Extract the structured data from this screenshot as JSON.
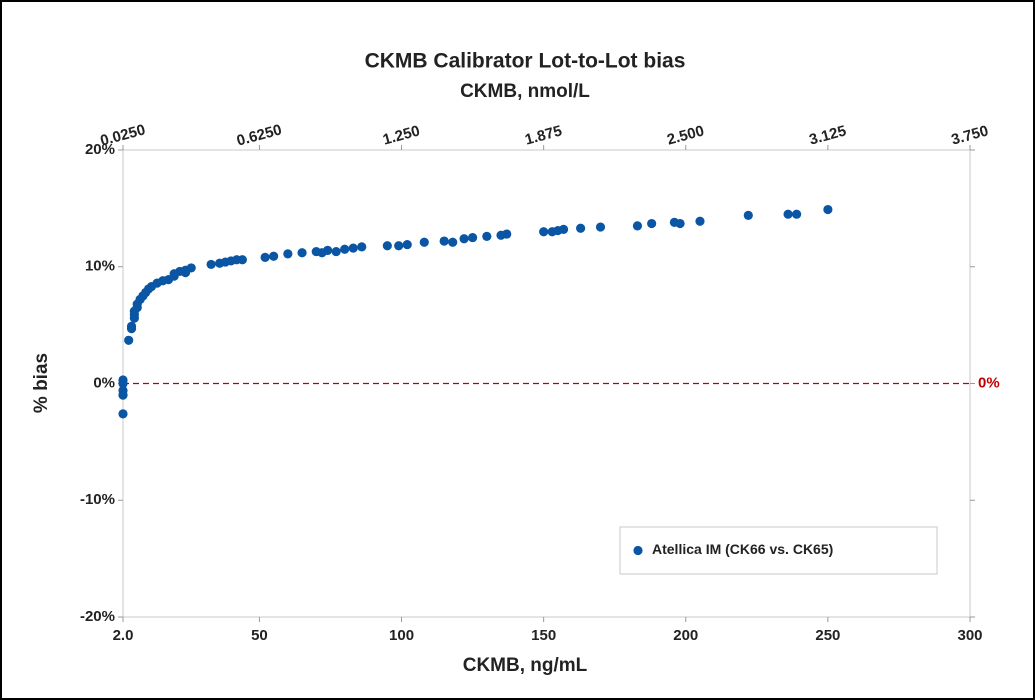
{
  "chart_data": {
    "type": "scatter",
    "title": "CKMB Calibrator Lot-to-Lot bias",
    "x2_label": "CKMB, nmol/L",
    "x_label": "CKMB, ng/mL",
    "y_label": "% bias",
    "xlim": [
      2,
      300
    ],
    "xticks": [
      {
        "value": 2,
        "label": "2.0"
      },
      50,
      100,
      150,
      200,
      250,
      300
    ],
    "x2lim": [
      0.025,
      3.75
    ],
    "x2ticks": [
      {
        "value": 0.025,
        "label": "0.0250"
      },
      {
        "value": 0.625,
        "label": "0.6250"
      },
      {
        "value": 1.25,
        "label": "1.250"
      },
      {
        "value": 1.875,
        "label": "1.875"
      },
      {
        "value": 2.5,
        "label": "2.500"
      },
      {
        "value": 3.125,
        "label": "3.125"
      },
      {
        "value": 3.75,
        "label": "3.750"
      }
    ],
    "ylim": [
      -20,
      20
    ],
    "yticks": [
      {
        "value": -20,
        "label": "-20%"
      },
      {
        "value": -10,
        "label": "-10%"
      },
      {
        "value": 0,
        "label": "0%"
      },
      {
        "value": 10,
        "label": "10%"
      },
      {
        "value": 20,
        "label": "20%"
      }
    ],
    "reference_line": {
      "value": 0,
      "label": "0%",
      "color": "#c00000"
    },
    "legend": "lower right",
    "series": [
      {
        "name": "Atellica IM (CK66 vs. CK65)",
        "color": "#0b56a4",
        "x": [
          2,
          2,
          2,
          2,
          2,
          4,
          5,
          5,
          6,
          6,
          6,
          7,
          7,
          8,
          9,
          10,
          11,
          12,
          14,
          16,
          18,
          20,
          20,
          22,
          24,
          24,
          26,
          33,
          36,
          38,
          40,
          42,
          44,
          52,
          55,
          60,
          65,
          70,
          72,
          74,
          77,
          80,
          83,
          86,
          95,
          99,
          102,
          108,
          115,
          118,
          122,
          125,
          130,
          135,
          137,
          150,
          153,
          155,
          157,
          163,
          170,
          183,
          188,
          196,
          198,
          205,
          222,
          236,
          239,
          250
        ],
        "values": [
          -2.6,
          -1.0,
          -0.6,
          0,
          0.3,
          3.7,
          4.7,
          4.9,
          5.6,
          5.9,
          6.2,
          6.5,
          6.8,
          7.2,
          7.5,
          7.8,
          8.1,
          8.3,
          8.6,
          8.8,
          8.9,
          9.2,
          9.4,
          9.6,
          9.7,
          9.5,
          9.9,
          10.2,
          10.3,
          10.4,
          10.5,
          10.6,
          10.6,
          10.8,
          10.9,
          11.1,
          11.2,
          11.3,
          11.2,
          11.4,
          11.3,
          11.5,
          11.6,
          11.7,
          11.8,
          11.8,
          11.9,
          12.1,
          12.2,
          12.1,
          12.4,
          12.5,
          12.6,
          12.7,
          12.8,
          13.0,
          13.0,
          13.1,
          13.2,
          13.3,
          13.4,
          13.5,
          13.7,
          13.8,
          13.7,
          13.9,
          14.4,
          14.5,
          14.5,
          14.9
        ]
      }
    ]
  }
}
